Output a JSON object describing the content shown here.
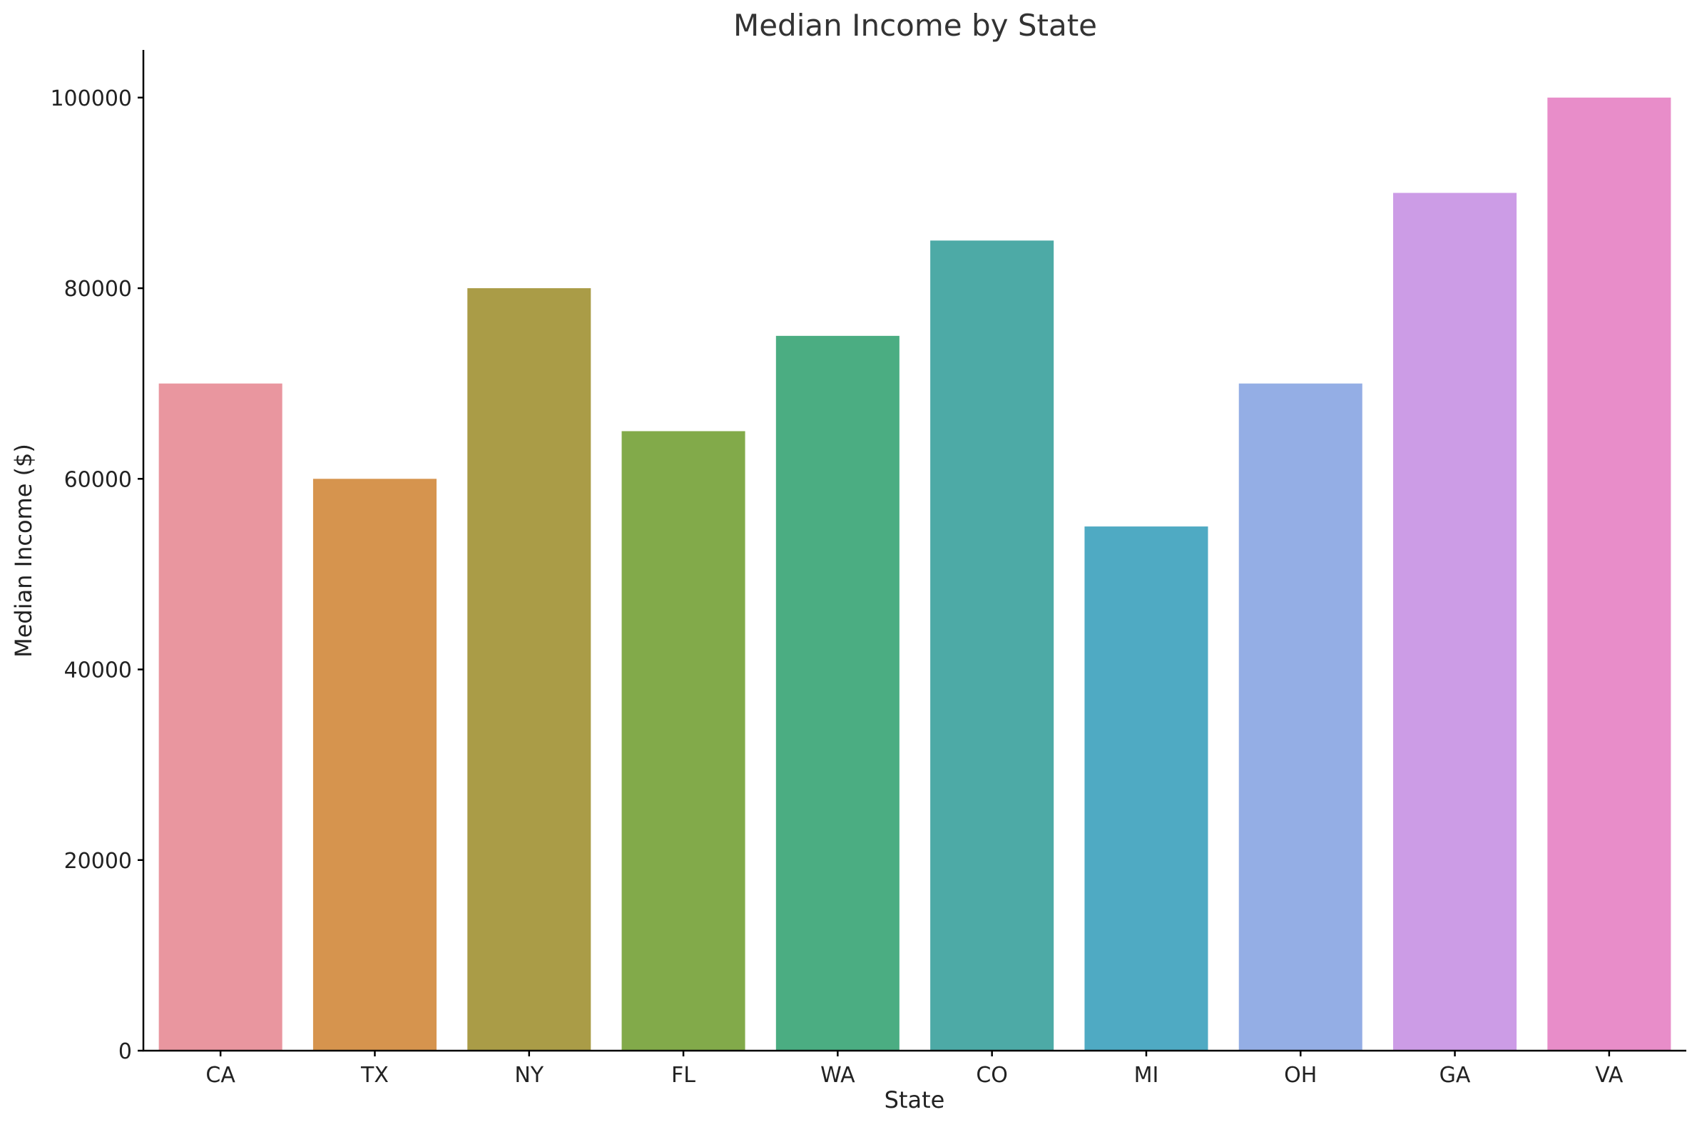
{
  "chart_data": {
    "type": "bar",
    "title": "Median Income by State",
    "xlabel": "State",
    "ylabel": "Median Income ($)",
    "categories": [
      "CA",
      "TX",
      "NY",
      "FL",
      "WA",
      "CO",
      "MI",
      "OH",
      "GA",
      "VA"
    ],
    "values": [
      70000,
      60000,
      80000,
      65000,
      75000,
      85000,
      55000,
      70000,
      90000,
      100000
    ],
    "colors": [
      "#e9969f",
      "#d6944e",
      "#aa9c47",
      "#82aa4a",
      "#4bad82",
      "#4daaa6",
      "#4faac3",
      "#94aee5",
      "#cc9ce6",
      "#e88dc9"
    ],
    "ylim": [
      0,
      105000
    ],
    "yticks": [
      0,
      20000,
      40000,
      60000,
      80000,
      100000
    ],
    "grid": false,
    "legend": "none"
  }
}
